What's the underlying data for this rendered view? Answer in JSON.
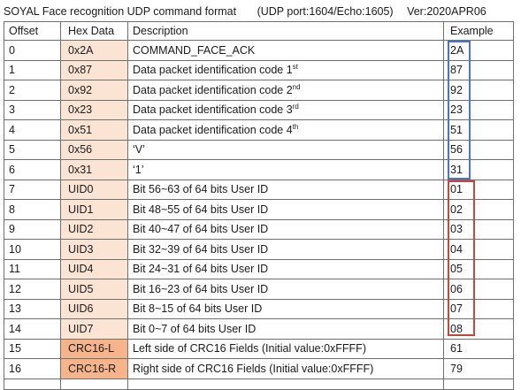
{
  "title": {
    "main": "SOYAL Face recognition UDP command format",
    "port": "(UDP port:1604/Echo:1605)",
    "version": "Ver:2020APR06"
  },
  "table": {
    "headers": {
      "offset": "Offset",
      "hex": "Hex Data",
      "description": "Description",
      "example": "Example"
    },
    "rows": [
      {
        "offset": "0",
        "hex": "0x2A",
        "description": "COMMAND_FACE_ACK",
        "sup": "",
        "example": "2A"
      },
      {
        "offset": "1",
        "hex": "0x87",
        "description": "Data packet identification code 1",
        "sup": "st",
        "example": "87"
      },
      {
        "offset": "2",
        "hex": "0x92",
        "description": "Data packet identification code 2",
        "sup": "nd",
        "example": "92"
      },
      {
        "offset": "3",
        "hex": "0x23",
        "description": "Data packet identification code 3",
        "sup": "rd",
        "example": "23"
      },
      {
        "offset": "4",
        "hex": "0x51",
        "description": "Data packet identification code 4",
        "sup": "th",
        "example": "51"
      },
      {
        "offset": "5",
        "hex": "0x56",
        "description": "‘V’",
        "sup": "",
        "example": "56"
      },
      {
        "offset": "6",
        "hex": "0x31",
        "description": "‘1’",
        "sup": "",
        "example": "31"
      },
      {
        "offset": "7",
        "hex": "UID0",
        "description": "Bit 56~63 of 64 bits User ID",
        "sup": "",
        "example": "01"
      },
      {
        "offset": "8",
        "hex": "UID1",
        "description": "Bit 48~55 of 64 bits User ID",
        "sup": "",
        "example": "02"
      },
      {
        "offset": "9",
        "hex": "UID2",
        "description": "Bit 40~47 of 64 bits User ID",
        "sup": "",
        "example": "03"
      },
      {
        "offset": "10",
        "hex": "UID3",
        "description": "Bit 32~39 of 64 bits User ID",
        "sup": "",
        "example": "04"
      },
      {
        "offset": "11",
        "hex": "UID4",
        "description": "Bit 24~31 of 64 bits User ID",
        "sup": "",
        "example": "05"
      },
      {
        "offset": "12",
        "hex": "UID5",
        "description": "Bit 16~23 of 64 bits User ID",
        "sup": "",
        "example": "06"
      },
      {
        "offset": "13",
        "hex": "UID6",
        "description": "Bit 8~15 of 64 bits User ID",
        "sup": "",
        "example": "07"
      },
      {
        "offset": "14",
        "hex": "UID7",
        "description": "Bit 0~7 of 64 bits User ID",
        "sup": "",
        "example": "08"
      },
      {
        "offset": "15",
        "hex": "CRC16-L",
        "description": "Left side of CRC16 Fields (Initial value:0xFFFF)",
        "sup": "",
        "example": "61"
      },
      {
        "offset": "16",
        "hex": "CRC16-R",
        "description": "Right side of CRC16 Fields (Initial value:0xFFFF)",
        "sup": "",
        "example": "79"
      }
    ]
  },
  "colors": {
    "hex_light_fill": "#fce4d4",
    "hex_dark_fill": "#f5b48a",
    "header_group_box": "#4e72c4",
    "uid_group_box": "#c9453d"
  }
}
